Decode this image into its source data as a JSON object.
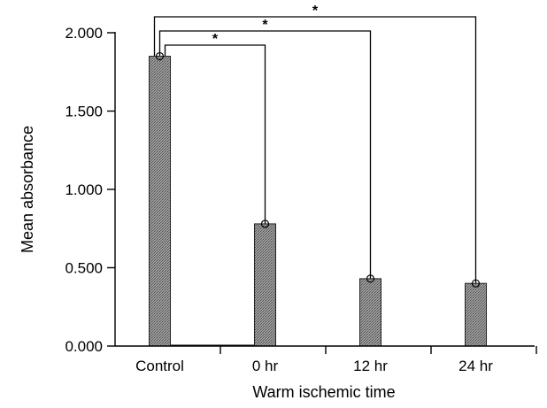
{
  "chart_data": {
    "type": "bar",
    "title": "",
    "xlabel": "Warm ischemic time",
    "ylabel": "Mean absorbance",
    "categories": [
      "Control",
      "0 hr",
      "12 hr",
      "24 hr"
    ],
    "values": [
      1.85,
      0.78,
      0.43,
      0.4
    ],
    "ylim": [
      0,
      2.0
    ],
    "yticks": [
      0,
      0.5,
      1.0,
      1.5,
      2.0
    ],
    "ytick_labels": [
      "0.000",
      "0.500",
      "1.000",
      "1.500",
      "2.000"
    ],
    "grid": false,
    "bar_color": "#8c8c8c",
    "significance": [
      {
        "from": "Control",
        "to": "0 hr",
        "label": "*"
      },
      {
        "from": "Control",
        "to": "12 hr",
        "label": "*"
      },
      {
        "from": "Control",
        "to": "24 hr",
        "label": "*"
      }
    ]
  }
}
